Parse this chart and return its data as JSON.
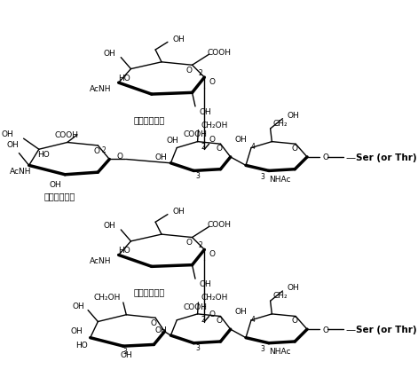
{
  "bg_color": "#ffffff",
  "text_color": "#000000",
  "figsize": [
    4.71,
    4.35
  ],
  "dpi": 100,
  "structures": [
    {
      "id": 1,
      "label": "（シアル酸）",
      "label2": "（シアル酸）"
    },
    {
      "id": 2,
      "label": "（シアル酸）"
    }
  ],
  "ser_label": "Ser (or Thr)",
  "nhac_label": "NHAc",
  "acnh_label": "AcNH",
  "cooh_label": "COOH",
  "oh_label": "OH",
  "ho_label": "HO",
  "ch2oh_label": "CH₂OH",
  "ch2_label": "CH₂",
  "o_label": "O"
}
